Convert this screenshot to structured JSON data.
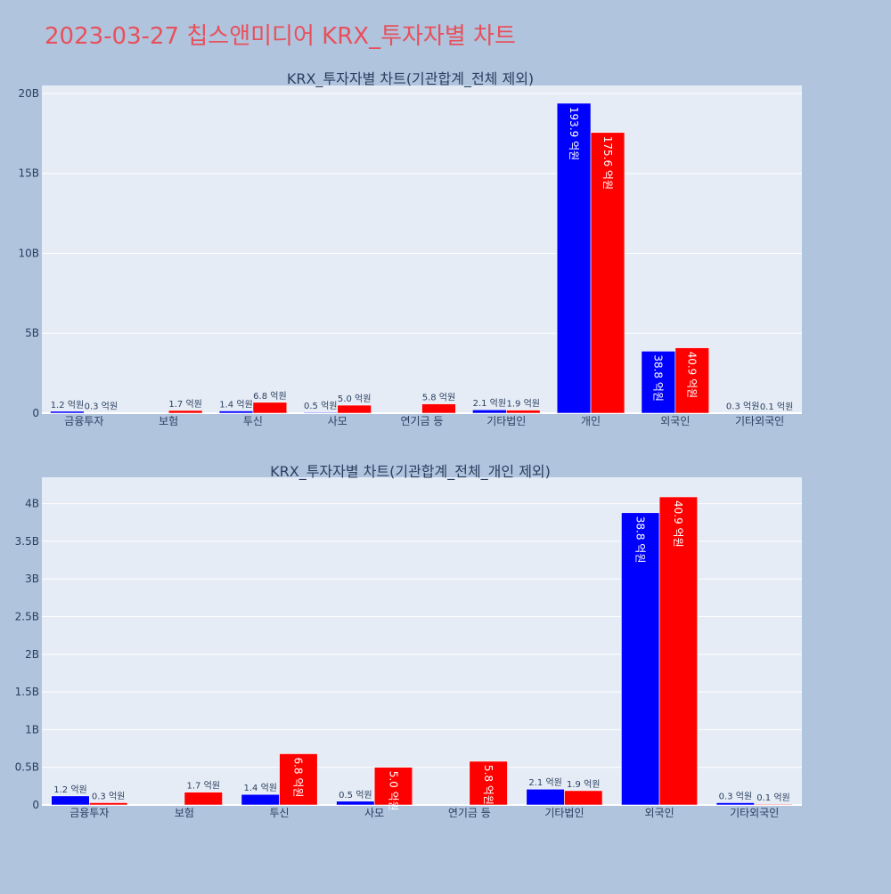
{
  "page_title": "2023-03-27 칩스앤미디어 KRX_투자자별 차트",
  "colors": {
    "page_bg": "#b0c4de",
    "plot_bg": "#e5ecf6",
    "title": "#e8505b",
    "buy": "#0000ff",
    "sell": "#ff0000",
    "text": "#2a3f5f"
  },
  "chart_data": [
    {
      "type": "bar",
      "title": "KRX_투자자별 차트(기관합계_전체 제외)",
      "categories": [
        "금융투자",
        "보험",
        "투신",
        "사모",
        "연기금 등",
        "기타법인",
        "개인",
        "외국인",
        "기타외국인"
      ],
      "series": [
        {
          "color": "#0000ff",
          "values": [
            120000000,
            0,
            140000000,
            50000000,
            0,
            210000000,
            19390000000,
            3880000000,
            30000000
          ],
          "labels": [
            "1.2 억원",
            "",
            "1.4 억원",
            "0.5 억원",
            "",
            "2.1 억원",
            "193.9 억원",
            "38.8 억원",
            "0.3 억원"
          ]
        },
        {
          "color": "#ff0000",
          "values": [
            30000000,
            170000000,
            680000000,
            500000000,
            580000000,
            190000000,
            17560000000,
            4090000000,
            10000000
          ],
          "labels": [
            "0.3 억원",
            "1.7 억원",
            "6.8 억원",
            "5.0 억원",
            "5.8 억원",
            "1.9 억원",
            "175.6 억원",
            "40.9 억원",
            "0.1 억원"
          ]
        }
      ],
      "ylim": [
        0,
        20500000000
      ],
      "yticks": [
        0,
        5000000000,
        10000000000,
        15000000000,
        20000000000
      ],
      "ytick_labels": [
        "0",
        "5B",
        "10B",
        "15B",
        "20B"
      ],
      "grid": true
    },
    {
      "type": "bar",
      "title": "KRX_투자자별 차트(기관합계_전체_개인 제외)",
      "categories": [
        "금융투자",
        "보험",
        "투신",
        "사모",
        "연기금 등",
        "기타법인",
        "외국인",
        "기타외국인"
      ],
      "series": [
        {
          "color": "#0000ff",
          "values": [
            120000000,
            0,
            140000000,
            50000000,
            0,
            210000000,
            3880000000,
            30000000
          ],
          "labels": [
            "1.2 억원",
            "",
            "1.4 억원",
            "0.5 억원",
            "",
            "2.1 억원",
            "38.8 억원",
            "0.3 억원"
          ]
        },
        {
          "color": "#ff0000",
          "values": [
            30000000,
            170000000,
            680000000,
            500000000,
            580000000,
            190000000,
            4090000000,
            10000000
          ],
          "labels": [
            "0.3 억원",
            "1.7 억원",
            "6.8 억원",
            "5.0 억원",
            "5.8 억원",
            "1.9 억원",
            "40.9 억원",
            "0.1 억원"
          ]
        }
      ],
      "ylim": [
        0,
        4350000000
      ],
      "yticks": [
        0,
        500000000,
        1000000000,
        1500000000,
        2000000000,
        2500000000,
        3000000000,
        3500000000,
        4000000000
      ],
      "ytick_labels": [
        "0",
        "0.5B",
        "1B",
        "1.5B",
        "2B",
        "2.5B",
        "3B",
        "3.5B",
        "4B"
      ],
      "grid": true
    }
  ]
}
